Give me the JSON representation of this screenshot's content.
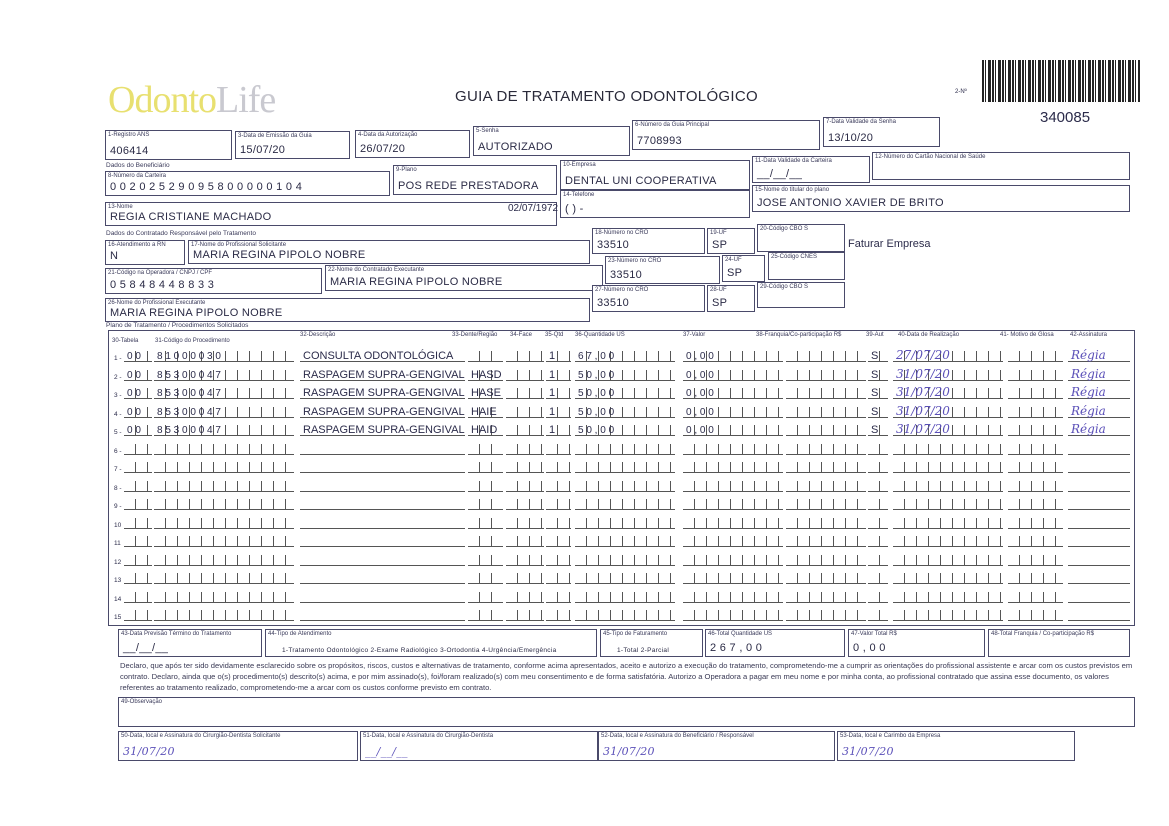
{
  "header": {
    "logo": "OdontoLife",
    "title": "GUIA DE TRATAMENTO ODONTOLÓGICO",
    "numero_label": "2-Nº",
    "numero": "340085"
  },
  "fields": {
    "f1": {
      "label": "1-Registro ANS",
      "value": "406414"
    },
    "f3": {
      "label": "3-Data de Emissão da Guia",
      "value": "15/07/20"
    },
    "f4": {
      "label": "4-Data da Autorização",
      "value": "26/07/20"
    },
    "f5": {
      "label": "5-Senha",
      "value": "AUTORIZADO"
    },
    "f6": {
      "label": "6-Número da Guia Principal",
      "value": "7708993"
    },
    "f7": {
      "label": "7-Data Validade da Senha",
      "value": "13/10/20"
    },
    "sec_benef": "Dados do Beneficiário",
    "f8": {
      "label": "8-Número da Carteira",
      "value": "0 0 2 0 2 5 2 9 0 9 5 8 0 0 0 0 0 1 0 4"
    },
    "f9": {
      "label": "9-Plano",
      "value": "POS REDE PRESTADORA"
    },
    "f10": {
      "label": "10-Empresa",
      "value": "DENTAL UNI  COOPERATIVA"
    },
    "f11": {
      "label": "11-Data Validade da Carteira",
      "value": "__/__/__"
    },
    "f12": {
      "label": "12-Número do Cartão Nacional de Saúde",
      "value": ""
    },
    "f13": {
      "label": "13-Nome",
      "value": "REGIA CRISTIANE MACHADO",
      "birth": "02/07/1972"
    },
    "f14": {
      "label": "14-Telefone",
      "value": "(   )       -     "
    },
    "f15": {
      "label": "15-Nome do titular do plano",
      "value": "JOSE ANTONIO XAVIER DE BRITO"
    },
    "sec_contr": "Dados do Contratado Responsável pelo Tratamento",
    "f16": {
      "label": "16-Atendimento a RN",
      "value": "N"
    },
    "f17": {
      "label": "17-Nome do Profissional Solicitante",
      "value": "MARIA REGINA PIPOLO NOBRE"
    },
    "f18": {
      "label": "18-Número no CRO",
      "value": "33510"
    },
    "f19": {
      "label": "19-UF",
      "value": "SP"
    },
    "f20": {
      "label": "20-Código CBO S",
      "value": ""
    },
    "faturar": "Faturar Empresa",
    "f21": {
      "label": "21-Código na Operadora / CNPJ / CPF",
      "value": "0 5 8 4 8 4 4 8 8 3 3"
    },
    "f22": {
      "label": "22-Nome do Contratado Executante",
      "value": "MARIA REGINA PIPOLO NOBRE"
    },
    "f23": {
      "label": "23-Número no CRO",
      "value": "33510"
    },
    "f24": {
      "label": "24-UF",
      "value": "SP"
    },
    "f25": {
      "label": "25-Código CNES",
      "value": ""
    },
    "f26": {
      "label": "26-Nome do Profissional Executante",
      "value": "MARIA REGINA PIPOLO NOBRE"
    },
    "f27": {
      "label": "27-Número no CRO",
      "value": "33510"
    },
    "f28": {
      "label": "28-UF",
      "value": "SP"
    },
    "f29": {
      "label": "29-Código CBO S",
      "value": ""
    }
  },
  "plano": {
    "title": "Plano de Tratamento / Procedimentos Solicitados",
    "headers": {
      "tabela": "30-Tabela",
      "codigo": "31-Código do Procedimento",
      "descricao": "32-Descrição",
      "regiao": "33-Dente/Região",
      "face": "34-Face",
      "qtd": "35-Qtd",
      "us": "36-Quantidade US",
      "valor": "37-Valor",
      "franquia": "38-Franquia/Co-participação R$",
      "aut": "39-Aut",
      "data": "40-Data de Realização",
      "glosa": "41- Motivo de Glosa",
      "assinatura": "42-Assinatura"
    },
    "rows": [
      {
        "n": "1 -",
        "tabela": "0 0",
        "codigo": "8 1 0 0 0 0 3 0",
        "descricao": "CONSULTA ODONTOLÓGICA",
        "regiao": "",
        "qtd": "1",
        "us": "6 7 , 0 0",
        "valor": "0 , 0 0",
        "aut": "S",
        "data": "27/07/20",
        "assinatura": "Régia"
      },
      {
        "n": "2 -",
        "tabela": "0 0",
        "codigo": "8 5 3 0 0 0 4 7",
        "descricao": "RASPAGEM SUPRA-GENGIVAL",
        "regiao": "HASD",
        "qtd": "1",
        "us": "5 0 , 0 0",
        "valor": "0 , 0 0",
        "aut": "S",
        "data": "31/07/20",
        "assinatura": "Régia"
      },
      {
        "n": "3 -",
        "tabela": "0 0",
        "codigo": "8 5 3 0 0 0 4 7",
        "descricao": "RASPAGEM SUPRA-GENGIVAL",
        "regiao": "HASE",
        "qtd": "1",
        "us": "5 0 , 0 0",
        "valor": "0 , 0 0",
        "aut": "S",
        "data": "31/07/20",
        "assinatura": "Régia"
      },
      {
        "n": "4 -",
        "tabela": "0 0",
        "codigo": "8 5 3 0 0 0 4 7",
        "descricao": "RASPAGEM SUPRA-GENGIVAL",
        "regiao": "HAIE",
        "qtd": "1",
        "us": "5 0 , 0 0",
        "valor": "0 , 0 0",
        "aut": "S",
        "data": "31/07/20",
        "assinatura": "Régia"
      },
      {
        "n": "5 -",
        "tabela": "0 0",
        "codigo": "8 5 3 0 0 0 4 7",
        "descricao": "RASPAGEM SUPRA-GENGIVAL",
        "regiao": "HAID",
        "qtd": "1",
        "us": "5 0 , 0 0",
        "valor": "0 , 0 0",
        "aut": "S",
        "data": "31/07/20",
        "assinatura": "Régia"
      },
      {
        "n": "6 -"
      },
      {
        "n": "7 -"
      },
      {
        "n": "8 -"
      },
      {
        "n": "9 -"
      },
      {
        "n": "10"
      },
      {
        "n": "11"
      },
      {
        "n": "12"
      },
      {
        "n": "13"
      },
      {
        "n": "14"
      },
      {
        "n": "15"
      }
    ]
  },
  "totais": {
    "f43": {
      "label": "43-Data Previsão Término do Tratamento",
      "value": "__/__/__"
    },
    "f44": {
      "label": "44-Tipo de Atendimento",
      "options": "1-Tratamento Odontológico  2-Exame Radiológico  3-Ortodontia  4-Urgência/Emergência"
    },
    "f45": {
      "label": "45-Tipo de Faturamento",
      "options": "1-Total  2-Parcial"
    },
    "f46": {
      "label": "46-Total Quantidade US",
      "value": "2 6 7 , 0 0"
    },
    "f47": {
      "label": "47-Valor Total R$",
      "value": "0 , 0 0"
    },
    "f48": {
      "label": "48-Total Franquia / Co-participação R$",
      "value": ""
    }
  },
  "declaracao": "Declaro, que após ter sido devidamente esclarecido sobre os propósitos, riscos, custos e alternativas de tratamento, conforme acima apresentados, aceito e autorizo a execução do tratamento, comprometendo-me a cumprir as orientações do profissional assistente e arcar com os custos previstos em contrato. Declaro, ainda que o(s) procedimento(s) descrito(s) acima, e por mim assinado(s), foi/foram realizado(s) com meu consentimento e de forma satisfatória. Autorizo a Operadora a pagar em meu nome e por minha conta, ao profissional contratado que assina esse documento, os valores referentes ao tratamento realizado, comprometendo-me a arcar com os custos conforme previsto em contrato.",
  "f49": {
    "label": "49-Observação",
    "value": ""
  },
  "assinaturas": {
    "f50": {
      "label": "50-Data, local e Assinatura do Cirurgião-Dentista Solicitante",
      "value": "31/07/20"
    },
    "f51": {
      "label": "51-Data, local e Assinatura do Cirurgião-Dentista",
      "value": "__/__/__"
    },
    "f52": {
      "label": "52-Data, local e Assinatura do Beneficiário / Responsável",
      "value": "31/07/20"
    },
    "f53": {
      "label": "53-Data, local e Carimbo da Empresa",
      "value": "31/07/20"
    }
  }
}
